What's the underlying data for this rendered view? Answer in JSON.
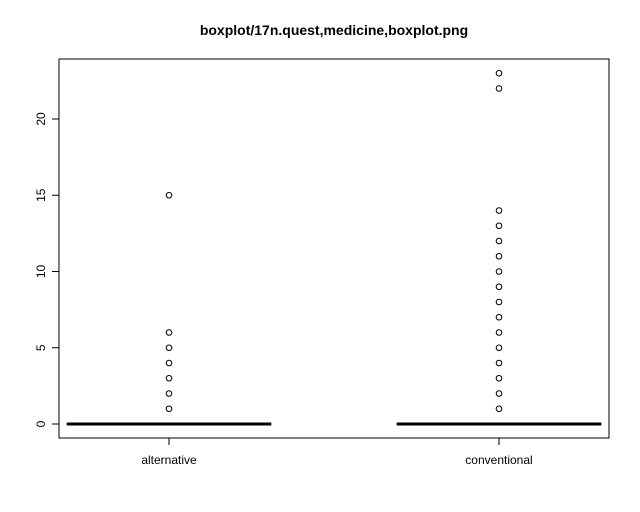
{
  "chart_data": {
    "type": "boxplot",
    "title": "boxplot/17n.quest,medicine,boxplot.png",
    "xlabel": "",
    "ylabel": "",
    "categories": [
      "alternative",
      "conventional"
    ],
    "ylim": [
      -1,
      24
    ],
    "yticks": [
      0,
      5,
      10,
      15,
      20
    ],
    "grid": false,
    "boxes": [
      {
        "name": "alternative",
        "min": 0,
        "q1": 0,
        "median": 0,
        "q3": 0,
        "max": 0,
        "outliers": [
          1,
          2,
          3,
          4,
          5,
          6,
          15
        ]
      },
      {
        "name": "conventional",
        "min": 0,
        "q1": 0,
        "median": 0,
        "q3": 0,
        "max": 0,
        "outliers": [
          1,
          2,
          3,
          4,
          5,
          6,
          7,
          8,
          9,
          10,
          11,
          12,
          13,
          14,
          22,
          23
        ]
      }
    ]
  }
}
